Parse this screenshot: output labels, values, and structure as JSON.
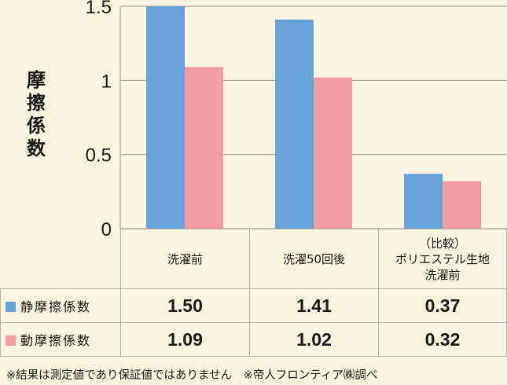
{
  "chart_data": {
    "type": "bar",
    "ylabel": "摩擦係数",
    "ylim": [
      0,
      1.5
    ],
    "yticks": [
      "0",
      "0.5",
      "1",
      "1.5"
    ],
    "categories": [
      "洗濯前",
      "洗濯50回後",
      "（比較）\nポリエステル生地\n洗濯前"
    ],
    "series": [
      {
        "name": "静摩擦係数",
        "color": "#66a3db",
        "values": [
          1.5,
          1.41,
          0.37
        ],
        "labels": [
          "1.50",
          "1.41",
          "0.37"
        ]
      },
      {
        "name": "動摩擦係数",
        "color": "#f29ca4",
        "values": [
          1.09,
          1.02,
          0.32
        ],
        "labels": [
          "1.09",
          "1.02",
          "0.32"
        ]
      }
    ],
    "grid": true
  },
  "footnote": "※結果は測定値であり保証値ではありません　※帝人フロンティア㈱調べ"
}
